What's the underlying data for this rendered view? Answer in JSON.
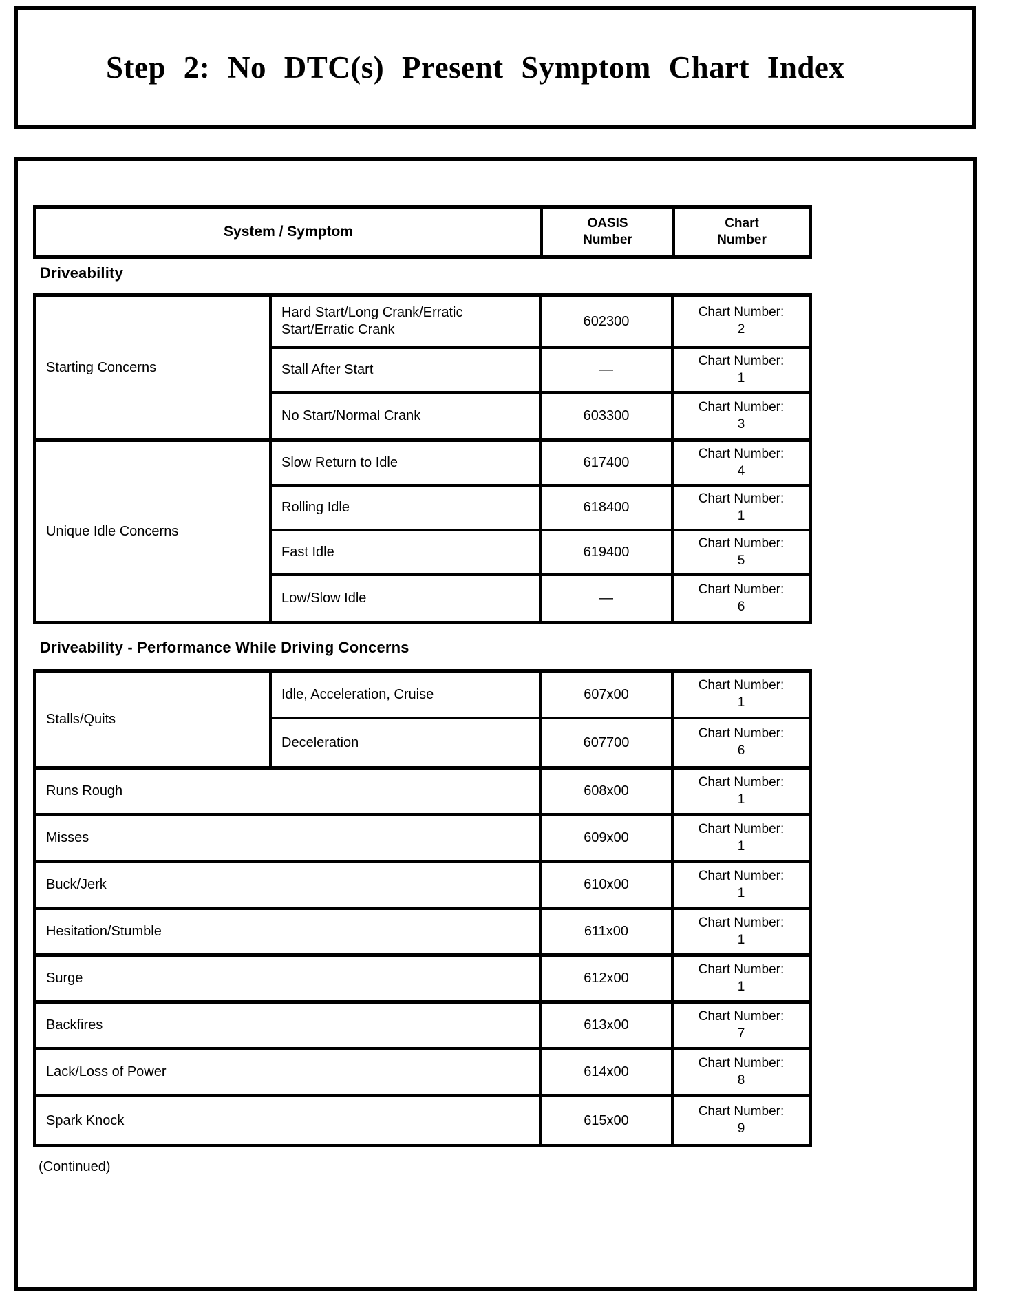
{
  "title": "Step 2: No DTC(s) Present Symptom Chart Index",
  "table_headers": {
    "col1": "System / Symptom",
    "col2_line1": "OASIS",
    "col2_line2": "Number",
    "col3_line1": "Chart",
    "col3_line2": "Number"
  },
  "chart_label": "Chart Number:",
  "continued": "(Continued)",
  "sections": [
    {
      "label": "Driveability",
      "groups": [
        {
          "name": "Starting Concerns",
          "rows": [
            {
              "symptom": "Hard Start/Long Crank/Erratic Start/Erratic Crank",
              "oasis": "602300",
              "chart": "2"
            },
            {
              "symptom": "Stall After Start",
              "oasis": "—",
              "chart": "1"
            },
            {
              "symptom": "No Start/Normal Crank",
              "oasis": "603300",
              "chart": "3"
            }
          ]
        },
        {
          "name": "Unique Idle Concerns",
          "rows": [
            {
              "symptom": "Slow Return to Idle",
              "oasis": "617400",
              "chart": "4"
            },
            {
              "symptom": "Rolling Idle",
              "oasis": "618400",
              "chart": "1"
            },
            {
              "symptom": "Fast Idle",
              "oasis": "619400",
              "chart": "5"
            },
            {
              "symptom": "Low/Slow Idle",
              "oasis": "—",
              "chart": "6"
            }
          ]
        }
      ]
    },
    {
      "label": "Driveability - Performance While Driving Concerns",
      "groups": [
        {
          "name": "Stalls/Quits",
          "rows": [
            {
              "symptom": "Idle, Acceleration, Cruise",
              "oasis": "607x00",
              "chart": "1"
            },
            {
              "symptom": "Deceleration",
              "oasis": "607700",
              "chart": "6"
            }
          ]
        },
        {
          "name": "Runs Rough",
          "oasis": "608x00",
          "chart": "1"
        },
        {
          "name": "Misses",
          "oasis": "609x00",
          "chart": "1"
        },
        {
          "name": "Buck/Jerk",
          "oasis": "610x00",
          "chart": "1"
        },
        {
          "name": "Hesitation/Stumble",
          "oasis": "611x00",
          "chart": "1"
        },
        {
          "name": "Surge",
          "oasis": "612x00",
          "chart": "1"
        },
        {
          "name": "Backfires",
          "oasis": "613x00",
          "chart": "7"
        },
        {
          "name": "Lack/Loss of Power",
          "oasis": "614x00",
          "chart": "8"
        },
        {
          "name": "Spark Knock",
          "oasis": "615x00",
          "chart": "9"
        }
      ]
    }
  ]
}
